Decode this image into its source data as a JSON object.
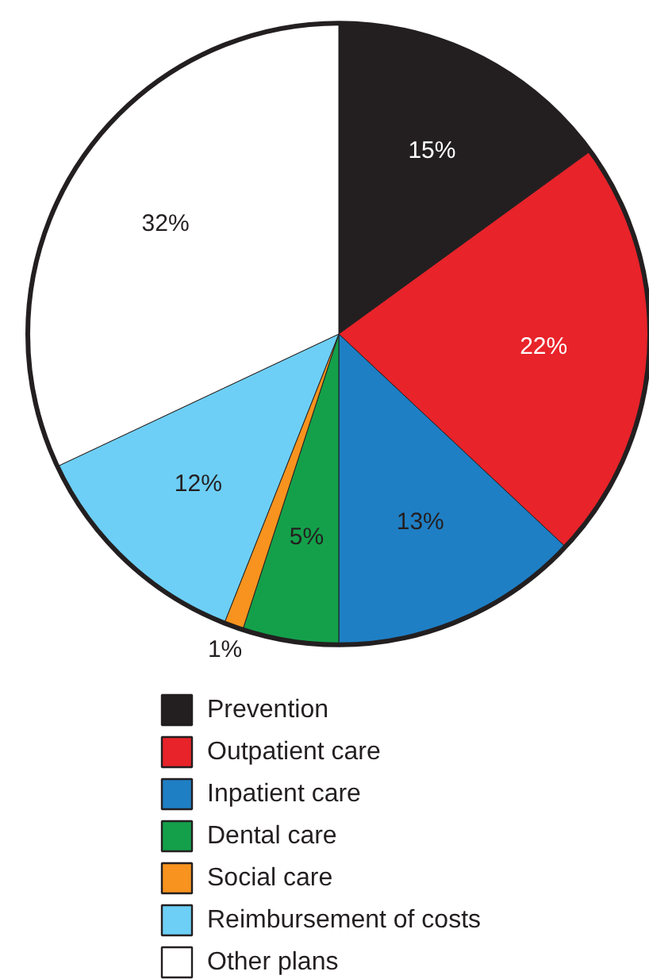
{
  "chart_data": {
    "type": "pie",
    "categories": [
      "Prevention",
      "Outpatient care",
      "Inpatient care",
      "Dental care",
      "Social care",
      "Reimbursement of costs",
      "Other plans"
    ],
    "values": [
      15,
      22,
      13,
      5,
      1,
      12,
      32
    ],
    "colors": [
      "#231f20",
      "#e8232a",
      "#1f7fc4",
      "#14a04b",
      "#f7931e",
      "#6dcff6",
      "#ffffff"
    ],
    "value_labels": [
      "15%",
      "22%",
      "13%",
      "5%",
      "1%",
      "12%",
      "32%"
    ],
    "legend": "bottom"
  }
}
